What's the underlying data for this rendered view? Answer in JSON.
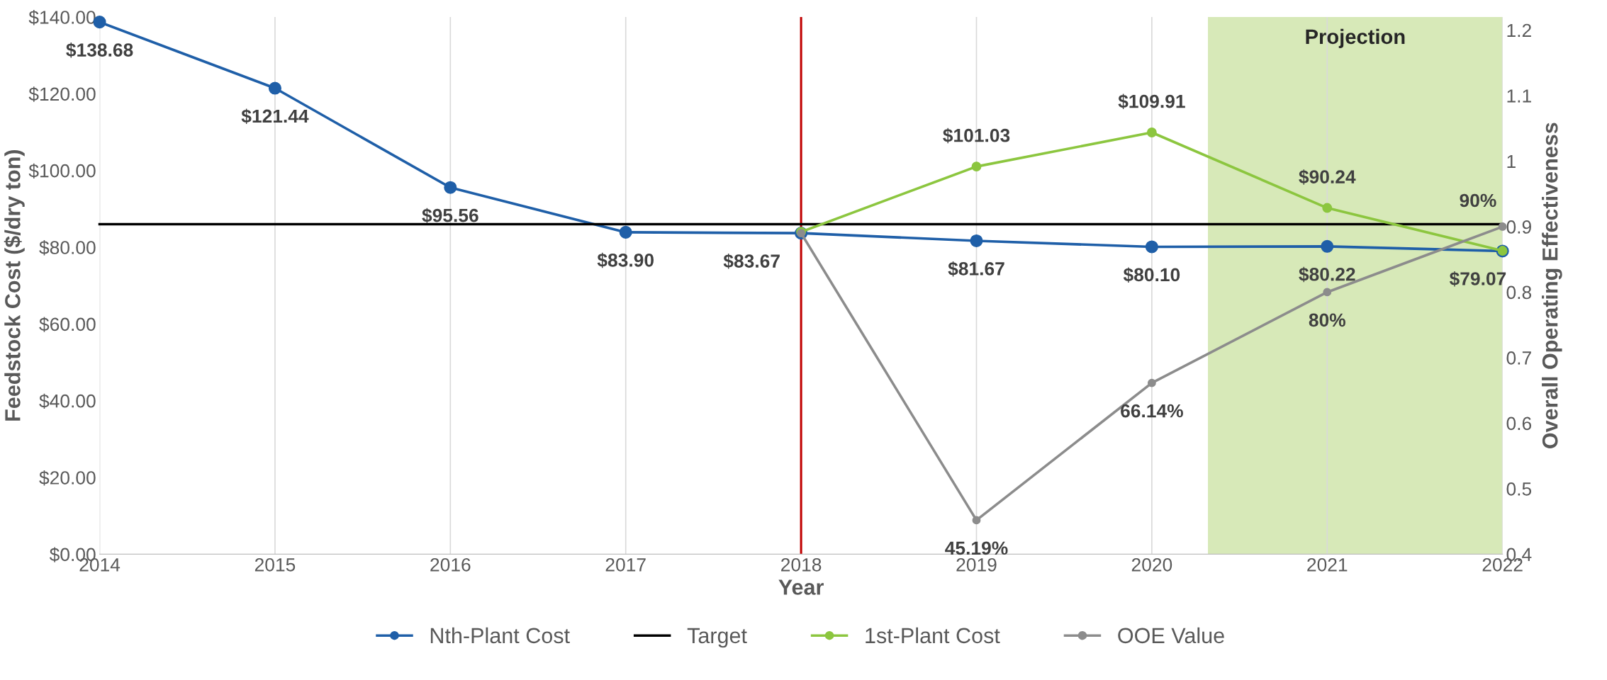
{
  "chart_data": {
    "type": "line",
    "xlabel": "Year",
    "ylabel": "Feedstock Cost ($/dry ton)",
    "y2label": "Overall Operating Effectiveness",
    "x": [
      2014,
      2015,
      2016,
      2017,
      2018,
      2019,
      2020,
      2021,
      2022
    ],
    "xlim": [
      2014,
      2022
    ],
    "xticks": [
      2014,
      2015,
      2016,
      2017,
      2018,
      2019,
      2020,
      2021,
      2022
    ],
    "ylim": [
      0,
      140
    ],
    "yticks": [
      {
        "value": 0,
        "label": "$0.00"
      },
      {
        "value": 20,
        "label": "$20.00"
      },
      {
        "value": 40,
        "label": "$40.00"
      },
      {
        "value": 60,
        "label": "$60.00"
      },
      {
        "value": 80,
        "label": "$80.00"
      },
      {
        "value": 100,
        "label": "$100.00"
      },
      {
        "value": 120,
        "label": "$120.00"
      },
      {
        "value": 140,
        "label": "$140.00"
      }
    ],
    "y2lim": [
      0.4,
      1.22
    ],
    "y2ticks": [
      0.4,
      0.5,
      0.6,
      0.7,
      0.8,
      0.9,
      1,
      1.1,
      1.2
    ],
    "grid": "x",
    "legend": "bottom",
    "marker": "circle",
    "series": [
      {
        "name": "Nth-Plant Cost",
        "color": "#1f5fa8",
        "values": [
          138.68,
          121.44,
          95.56,
          83.9,
          83.67,
          81.67,
          80.1,
          80.22,
          79
        ],
        "value_labels": [
          "$138.68",
          "$121.44",
          "$95.56",
          "$83.90",
          "$83.67",
          "$81.67",
          "$80.10",
          "$80.22",
          null
        ]
      },
      {
        "name": "Target",
        "color": "#000000",
        "marker": "none",
        "values": [
          86,
          86,
          86,
          86,
          86,
          86,
          86,
          86,
          86
        ]
      },
      {
        "name": "1st-Plant Cost",
        "color": "#8cc63f",
        "x": [
          2018,
          2019,
          2020,
          2021,
          2022
        ],
        "values": [
          84,
          101.03,
          109.91,
          90.24,
          79.07
        ],
        "value_labels": [
          null,
          "$101.03",
          "$109.91",
          "$90.24",
          "$79.07"
        ]
      },
      {
        "name": "OOE Value",
        "color": "#8c8c8c",
        "axis": "y2",
        "x": [
          2018,
          2019,
          2020,
          2021,
          2022
        ],
        "values": [
          0.89,
          0.4519,
          0.6614,
          0.8,
          0.9
        ],
        "value_labels": [
          null,
          "45.19%",
          "66.14%",
          "80%",
          "90%"
        ]
      }
    ],
    "ref_lines": [
      {
        "axis": "x",
        "value": 2018,
        "color": "#c00000"
      }
    ],
    "bands": [
      {
        "axis": "x",
        "from": 2020.32,
        "to": 2022,
        "label": "Projection",
        "color": "#d7e9b8"
      }
    ]
  }
}
